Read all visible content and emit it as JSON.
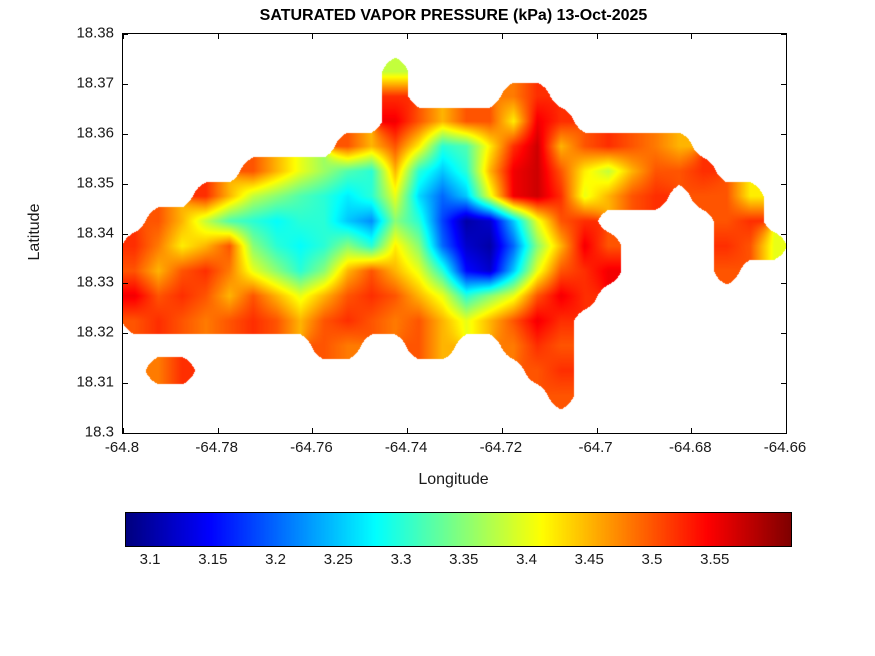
{
  "chart_data": {
    "type": "heatmap",
    "title": "SATURATED VAPOR PRESSURE (kPa) 13-Oct-2025",
    "xlabel": "Longitude",
    "ylabel": "Latitude",
    "xlim": [
      -64.8,
      -64.66
    ],
    "ylim": [
      18.3,
      18.38
    ],
    "xtick_values": [
      -64.8,
      -64.78,
      -64.76,
      -64.74,
      -64.72,
      -64.7,
      -64.68,
      -64.66
    ],
    "xtick_labels": [
      "-64.8",
      "-64.78",
      "-64.76",
      "-64.74",
      "-64.72",
      "-64.7",
      "-64.68",
      "-64.66"
    ],
    "ytick_values": [
      18.3,
      18.31,
      18.32,
      18.33,
      18.34,
      18.35,
      18.36,
      18.37,
      18.38
    ],
    "ytick_labels": [
      "18.3",
      "18.31",
      "18.32",
      "18.33",
      "18.34",
      "18.35",
      "18.36",
      "18.37",
      "18.38"
    ],
    "colormap": "jet",
    "clim": [
      3.08,
      3.61
    ],
    "colorbar_tick_values": [
      3.1,
      3.15,
      3.2,
      3.25,
      3.3,
      3.35,
      3.4,
      3.45,
      3.5,
      3.55
    ],
    "colorbar_tick_labels": [
      "3.1",
      "3.15",
      "3.2",
      "3.25",
      "3.3",
      "3.35",
      "3.4",
      "3.45",
      "3.5",
      "3.55"
    ],
    "grid": {
      "lon_start": -64.7975,
      "lon_step": 0.005,
      "lat_start": 18.3775,
      "lat_step": -0.005,
      "values": [
        [
          null,
          null,
          null,
          null,
          null,
          null,
          null,
          null,
          null,
          null,
          null,
          null,
          null,
          null,
          null,
          null,
          null,
          null,
          null,
          null,
          null,
          null,
          null,
          null,
          null,
          null,
          null,
          null
        ],
        [
          null,
          null,
          null,
          null,
          null,
          null,
          null,
          null,
          null,
          null,
          null,
          3.38,
          null,
          null,
          null,
          null,
          null,
          null,
          null,
          null,
          null,
          null,
          null,
          null,
          null,
          null,
          null,
          null
        ],
        [
          null,
          null,
          null,
          null,
          null,
          null,
          null,
          null,
          null,
          null,
          null,
          3.52,
          null,
          null,
          null,
          null,
          3.48,
          3.52,
          null,
          null,
          null,
          null,
          null,
          null,
          null,
          null,
          null,
          null
        ],
        [
          null,
          null,
          null,
          null,
          null,
          null,
          null,
          null,
          null,
          null,
          null,
          3.55,
          3.5,
          3.45,
          3.5,
          3.5,
          3.42,
          3.55,
          3.52,
          null,
          null,
          null,
          null,
          null,
          null,
          null,
          null,
          null
        ],
        [
          null,
          null,
          null,
          null,
          null,
          null,
          null,
          null,
          null,
          3.5,
          3.45,
          3.5,
          3.42,
          3.3,
          3.32,
          3.42,
          3.52,
          3.57,
          3.45,
          3.5,
          3.52,
          3.5,
          3.48,
          3.45,
          null,
          null,
          null,
          null
        ],
        [
          null,
          null,
          null,
          null,
          null,
          3.5,
          3.45,
          3.4,
          3.36,
          3.32,
          3.3,
          3.45,
          3.3,
          3.25,
          3.3,
          3.45,
          3.55,
          3.57,
          3.5,
          3.42,
          3.38,
          3.45,
          3.5,
          3.5,
          3.52,
          null,
          null,
          null
        ],
        [
          null,
          null,
          null,
          3.52,
          3.45,
          3.38,
          3.35,
          3.32,
          3.3,
          3.27,
          3.3,
          3.4,
          3.26,
          3.2,
          3.25,
          3.4,
          3.55,
          3.57,
          3.52,
          3.4,
          3.45,
          3.5,
          3.52,
          null,
          3.5,
          3.5,
          3.42,
          null
        ],
        [
          null,
          3.5,
          3.45,
          3.38,
          3.32,
          3.3,
          3.28,
          3.3,
          3.3,
          3.25,
          3.22,
          3.35,
          3.3,
          3.18,
          3.1,
          3.12,
          3.25,
          3.4,
          3.5,
          3.52,
          null,
          null,
          null,
          null,
          null,
          3.5,
          3.52,
          null
        ],
        [
          3.52,
          3.48,
          3.42,
          3.45,
          3.5,
          3.35,
          3.3,
          3.28,
          3.3,
          3.35,
          3.3,
          3.42,
          3.35,
          3.2,
          3.12,
          3.1,
          3.2,
          3.35,
          3.45,
          3.55,
          3.5,
          null,
          null,
          null,
          null,
          3.52,
          3.5,
          3.4
        ],
        [
          3.5,
          3.45,
          3.5,
          3.52,
          3.48,
          3.4,
          3.35,
          3.3,
          3.35,
          3.45,
          3.5,
          3.45,
          3.4,
          3.3,
          3.15,
          3.12,
          3.25,
          3.4,
          3.5,
          3.52,
          3.55,
          null,
          null,
          null,
          null,
          3.5,
          null,
          null
        ],
        [
          3.55,
          3.5,
          3.52,
          3.5,
          3.45,
          3.5,
          3.45,
          3.4,
          3.45,
          3.5,
          3.52,
          3.5,
          3.45,
          3.4,
          3.3,
          3.35,
          3.4,
          3.5,
          3.55,
          3.52,
          null,
          null,
          null,
          null,
          null,
          null,
          null,
          null
        ],
        [
          3.5,
          3.52,
          3.5,
          3.48,
          3.5,
          3.52,
          3.5,
          3.45,
          3.5,
          3.52,
          3.5,
          3.48,
          3.5,
          3.45,
          3.4,
          3.45,
          3.5,
          3.55,
          3.52,
          null,
          null,
          null,
          null,
          null,
          null,
          null,
          null,
          null
        ],
        [
          null,
          null,
          null,
          null,
          null,
          null,
          null,
          null,
          3.5,
          3.48,
          null,
          null,
          3.5,
          3.45,
          null,
          null,
          3.48,
          3.52,
          3.5,
          null,
          null,
          null,
          null,
          null,
          null,
          null,
          null,
          null
        ],
        [
          null,
          3.48,
          3.52,
          null,
          null,
          null,
          null,
          null,
          null,
          null,
          null,
          null,
          null,
          null,
          null,
          null,
          null,
          3.5,
          3.52,
          null,
          null,
          null,
          null,
          null,
          null,
          null,
          null,
          null
        ],
        [
          null,
          null,
          null,
          null,
          null,
          null,
          null,
          null,
          null,
          null,
          null,
          null,
          null,
          null,
          null,
          null,
          null,
          null,
          3.5,
          null,
          null,
          null,
          null,
          null,
          null,
          null,
          null,
          null
        ],
        [
          null,
          null,
          null,
          null,
          null,
          null,
          null,
          null,
          null,
          null,
          null,
          null,
          null,
          null,
          null,
          null,
          null,
          null,
          null,
          null,
          null,
          null,
          null,
          null,
          null,
          null,
          null,
          null
        ]
      ]
    }
  }
}
